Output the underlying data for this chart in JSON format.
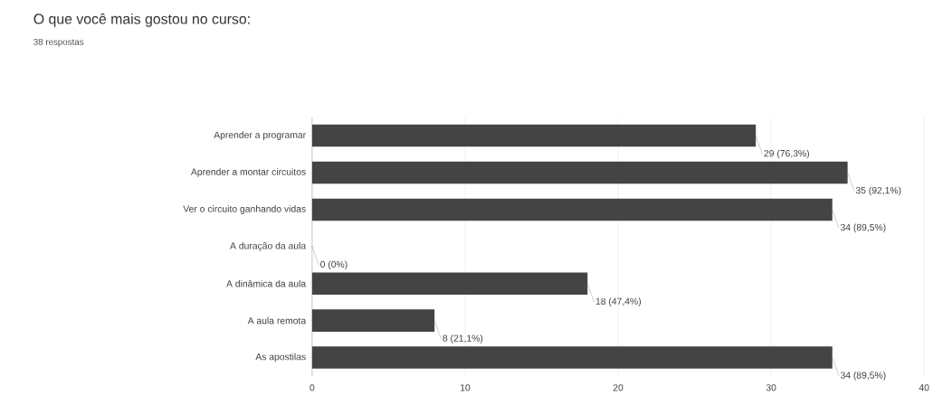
{
  "chart_data": {
    "type": "bar",
    "orientation": "horizontal",
    "title": "O que você mais gostou no curso:",
    "subtitle": "38 respostas",
    "categories": [
      "Aprender a programar",
      "Aprender a montar circuitos",
      "Ver o circuito ganhando vidas",
      "A duração da aula",
      "A dinâmica da aula",
      "A aula remota",
      "As apostilas"
    ],
    "values": [
      29,
      35,
      34,
      0,
      18,
      8,
      34
    ],
    "value_labels": [
      "29 (76,3%)",
      "35 (92,1%)",
      "34 (89,5%)",
      "0 (0%)",
      "18 (47,4%)",
      "8 (21,1%)",
      "34 (89,5%)"
    ],
    "color": "#444444",
    "xlim": [
      0,
      40
    ],
    "xticks": [
      0,
      10,
      20,
      30,
      40
    ],
    "grid": "x"
  }
}
